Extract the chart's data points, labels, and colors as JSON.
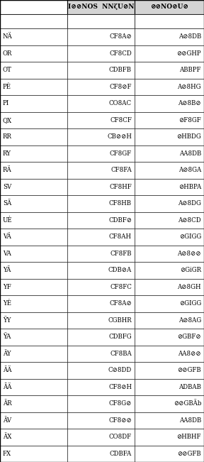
{
  "col1": [
    "NÄ",
    "OR",
    "OT",
    "PĖ",
    "PI",
    "QX",
    "RR",
    "RY",
    "RÄ",
    "SV",
    "SÄ",
    "UĖ",
    "VÄ",
    "VA",
    "YÄ",
    "YF",
    "YĖ",
    "ŸY",
    "ŸA",
    "ÄY",
    "ÄÄ",
    "ĀÄ",
    "ÄR",
    "ÄV",
    "ÄX",
    "FX"
  ],
  "col2": [
    "CF8A⊘",
    "CF8CD",
    "CDBFB",
    "CF8⊘F",
    "CO8AC",
    "CF8CF",
    "CB⊘⊘H",
    "CF8GF",
    "CF8FA",
    "CF8HF",
    "CF8HB",
    "CDBF⊘",
    "CF8AH",
    "CF8FB",
    "CDB⊘A",
    "CF8FC",
    "CF8A⊘",
    "CGBHR",
    "CDBFG",
    "CF8BA",
    "C⊘8DD",
    "CF8⊘H",
    "CF8G⊘",
    "CF8⊘⊘",
    "CO8DF",
    "CDBFA"
  ],
  "col3": [
    "A⊘8DB",
    "⊘⊘GHP",
    "ABBPF",
    "A⊘8HG",
    "A⊘8B⊘",
    "⊘F8GF",
    "⊘HBDG",
    "AA8DB",
    "A⊘8GA",
    "⊘HBPA",
    "A⊘8DG",
    "A⊘8CD",
    "⊘GIGG",
    "A⊘8⊘⊘",
    "⊘GiGR",
    "A⊘8GH",
    "⊘GIGG",
    "A⊘8AG",
    "⊘GBF⊘",
    "AA8⊘⊘",
    "⊘⊘GFB",
    "ADBAB",
    "⊘⊘GBÄb",
    "AA8DB",
    "⊘HBHF",
    "⊘⊘GFB"
  ],
  "header2": "I⊘⊘NOS  NNζU⊘N",
  "header3": "⊘⊘NO⊘U⊘",
  "bg_color": "#ffffff",
  "line_color": "#000000",
  "header_bg": "#d4d4d4",
  "font_size": 6.2,
  "header_font_size": 6.5
}
